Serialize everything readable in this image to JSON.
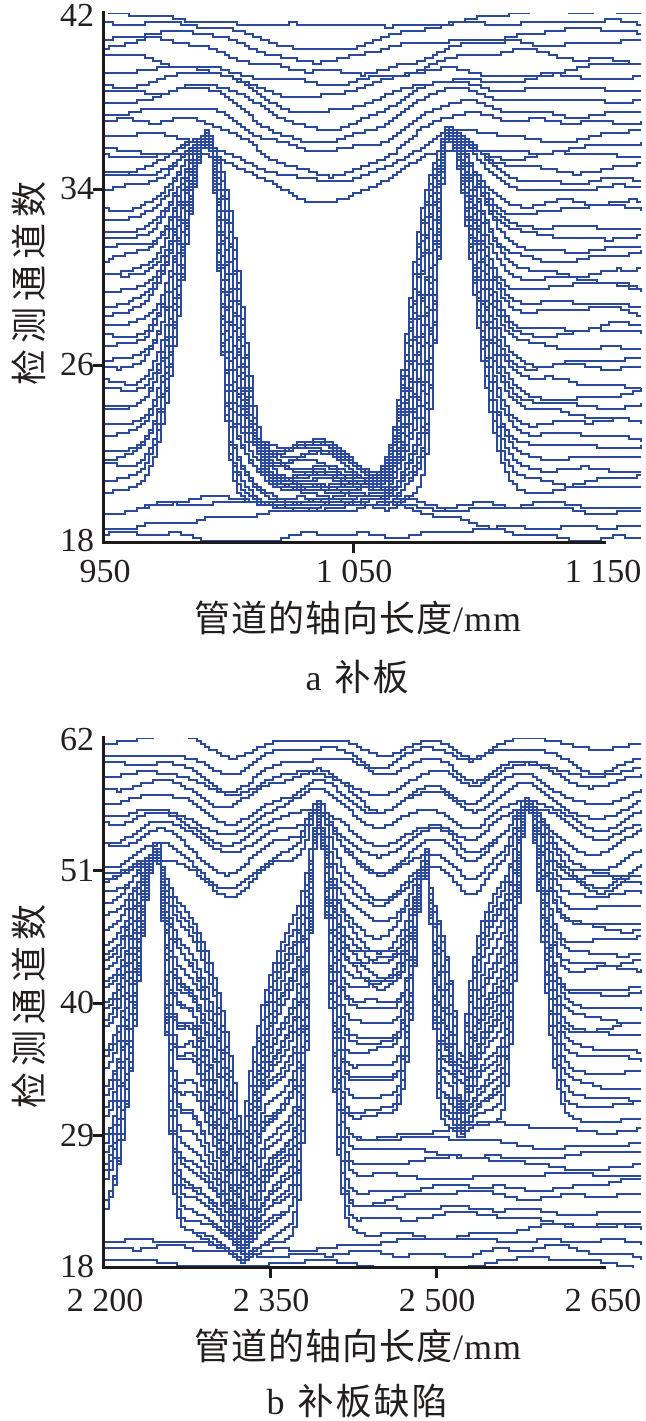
{
  "colors": {
    "line_blue": "#2b4a9c",
    "axis_black": "#1d1a19",
    "background": "#ffffff"
  },
  "chart_data": [
    {
      "id": "a",
      "type": "line",
      "variant": "waterfall-multichannel",
      "caption": "a 补板",
      "xlabel": "管道的轴向长度/mm",
      "ylabel": "检测通道数",
      "xlim": [
        950,
        1150
      ],
      "ylim": [
        18,
        42
      ],
      "grid": false,
      "legend": null,
      "xticks": [
        {
          "value": 950,
          "label": "950"
        },
        {
          "value": 1050,
          "label": "1 050"
        },
        {
          "value": 1150,
          "label": "1 150"
        }
      ],
      "yticks": [
        {
          "value": 42,
          "label": "42"
        },
        {
          "value": 34,
          "label": "34"
        },
        {
          "value": 26,
          "label": "26"
        },
        {
          "value": 18,
          "label": "18"
        }
      ],
      "line_color": "#2b4a9c",
      "n_channels": 48,
      "baseline_min": 18.25,
      "baseline_step": 0.5057,
      "model": {
        "seed": 7,
        "noise": {
          "amps": [
            0.14,
            0.08,
            0.17
          ],
          "freqs": [
            0.035,
            0.095,
            0.016
          ]
        },
        "peaks": [
          {
            "c": 991,
            "sl": 10,
            "sr": 4,
            "top": 36.4,
            "b_min": 20,
            "b_max": 35.8
          },
          {
            "c": 1087,
            "sl": 4,
            "sr": 10,
            "top": 36.6,
            "b_min": 20,
            "b_max": 35.8
          }
        ],
        "valleys": [
          {
            "shape": "plateau",
            "c": 1038,
            "hf": 33,
            "soft": 3.5,
            "floor": 19.65,
            "spread": 1.0,
            "b_min": 19.8,
            "b_max": 35.8
          }
        ],
        "bumps": [
          {
            "c": 1034,
            "sigma": 15,
            "amp": 2.8,
            "b_min": 23,
            "b_max": 31.5
          },
          {
            "c": 1012,
            "sigma": 7,
            "amp": 1.3,
            "b_min": 22,
            "b_max": 29
          },
          {
            "c": 1040,
            "sigma": 42,
            "amp": 1.0,
            "b_min": 18.2,
            "b_max": 19.8
          },
          {
            "c": 1087,
            "sigma": 12,
            "amp": 1.2,
            "b_min": 35.8,
            "b_max": 40
          },
          {
            "c": 991,
            "sigma": 12,
            "amp": 0.8,
            "b_min": 35.8,
            "b_max": 40
          }
        ],
        "upper_waves": [
          {
            "c": 1036,
            "sigma": 26,
            "amp": 2.6,
            "b_ref": 35.8,
            "fade": 6
          }
        ]
      }
    },
    {
      "id": "b",
      "type": "line",
      "variant": "waterfall-multichannel",
      "caption": "b 补板缺陷",
      "xlabel": "管道的轴向长度/mm",
      "ylabel": "检测通道数",
      "xlim": [
        2200,
        2650
      ],
      "ylim": [
        18,
        62
      ],
      "grid": false,
      "legend": null,
      "xticks": [
        {
          "value": 2200,
          "label": "2 200"
        },
        {
          "value": 2350,
          "label": "2 350"
        },
        {
          "value": 2500,
          "label": "2 500"
        },
        {
          "value": 2650,
          "label": "2 650"
        }
      ],
      "yticks": [
        {
          "value": 62,
          "label": "62"
        },
        {
          "value": 51,
          "label": "51"
        },
        {
          "value": 40,
          "label": "40"
        },
        {
          "value": 29,
          "label": "29"
        },
        {
          "value": 18,
          "label": "18"
        }
      ],
      "line_color": "#2b4a9c",
      "n_channels": 48,
      "baseline_min": 18.3,
      "baseline_step": 0.9302,
      "model": {
        "seed": 23,
        "noise": {
          "amps": [
            0.26,
            0.15,
            0.3
          ],
          "freqs": [
            0.03,
            0.085,
            0.015
          ]
        },
        "peaks": [
          {
            "c": 2246,
            "sl": 18,
            "sr": 7,
            "top": 53.2,
            "b_min": 20.5,
            "b_max": 51.5
          },
          {
            "c": 2391,
            "sl": 8,
            "sr": 10,
            "top": 56.3,
            "b_min": 20.5,
            "b_max": 55
          },
          {
            "c": 2489,
            "sl": 10,
            "sr": 5,
            "top": 52.6,
            "b_min": 29.5,
            "b_max": 51.5
          },
          {
            "c": 2580,
            "sl": 9,
            "sr": 13,
            "top": 56.6,
            "b_min": 29.5,
            "b_max": 55
          }
        ],
        "valleys": [
          {
            "shape": "v",
            "c": 2322,
            "tau": 26,
            "floor": 18.6,
            "spread": 1.8,
            "b_min": 19.4,
            "b_max": 51.5,
            "partial_from": 36,
            "partial_mult": 0.72
          },
          {
            "shape": "v",
            "c": 2520,
            "tau": 14,
            "floor": 28.2,
            "spread": 1.5,
            "b_min": 29.5,
            "b_max": 51.5,
            "partial_from": 44,
            "partial_mult": 0.78
          }
        ],
        "bumps": [
          {
            "c": 2278,
            "sigma": 9,
            "amp": 3.2,
            "b_min": 28,
            "b_max": 46
          },
          {
            "c": 2338,
            "sigma": 9,
            "amp": 3.2,
            "b_min": 28,
            "b_max": 46
          },
          {
            "c": 2515,
            "sigma": 8,
            "amp": 3.0,
            "b_min": 31,
            "b_max": 44
          },
          {
            "c": 2246,
            "sigma": 16,
            "amp": 1.2,
            "b_min": 51.5,
            "b_max": 56
          },
          {
            "c": 2391,
            "sigma": 14,
            "amp": 1.4,
            "b_min": 55,
            "b_max": 60
          },
          {
            "c": 2580,
            "sigma": 14,
            "amp": 1.2,
            "b_min": 55,
            "b_max": 60
          },
          {
            "c": 2322,
            "sigma": 30,
            "amp": 0.8,
            "b_min": 18.3,
            "b_max": 19.4
          }
        ],
        "upper_waves": [
          {
            "c": 2310,
            "sigma": 22,
            "amp": 3.2,
            "b_ref": 51.5,
            "fade": 16
          },
          {
            "c": 2447,
            "sigma": 20,
            "amp": 4.0,
            "b_ref": 45,
            "fade": 18
          },
          {
            "c": 2530,
            "sigma": 14,
            "amp": 2.8,
            "b_ref": 51.5,
            "fade": 12
          },
          {
            "c": 2644,
            "sigma": 24,
            "amp": 2.8,
            "b_ref": 51.5,
            "fade": 16
          },
          {
            "c": 2208,
            "sigma": 18,
            "amp": 1.2,
            "b_ref": 51.5,
            "fade": 14
          }
        ]
      }
    }
  ]
}
